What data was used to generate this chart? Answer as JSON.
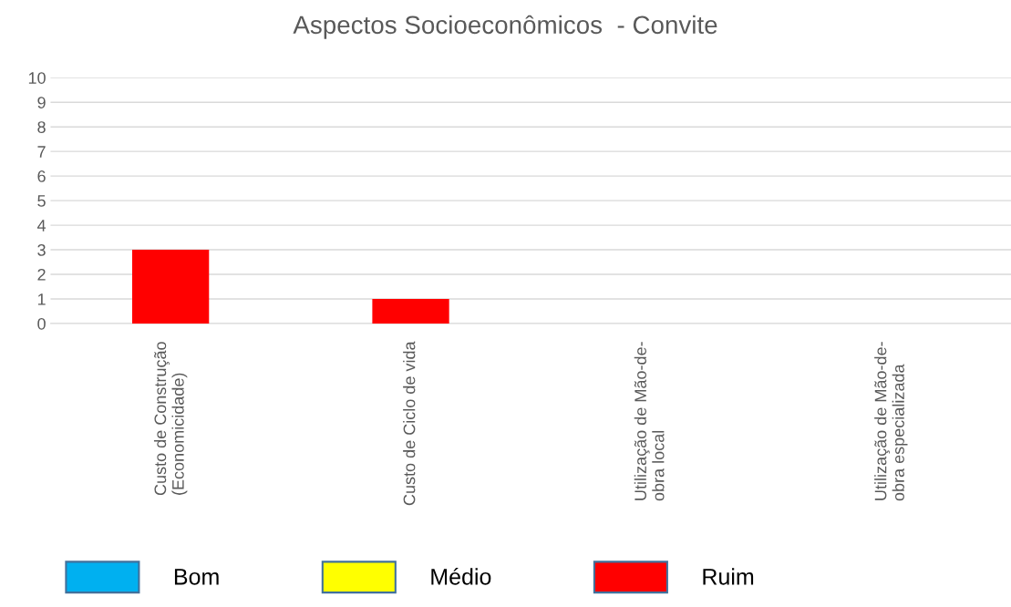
{
  "chart_data": {
    "type": "bar",
    "title": "Aspectos Socioeconômicos  - Convite",
    "categories": [
      "Custo de Construção\n(Economicidade)",
      "Custo de Ciclo de vida",
      "Utilização de Mão-de-\nobra local",
      "Utilização de Mão-de-\nobra especializada"
    ],
    "series": [
      {
        "name": "Bom",
        "color": "#00b0f0",
        "values": [
          0,
          0,
          0,
          0
        ]
      },
      {
        "name": "Médio",
        "color": "#ffff00",
        "values": [
          0,
          0,
          0,
          0
        ]
      },
      {
        "name": "Ruim",
        "color": "#ff0000",
        "values": [
          3,
          1,
          0,
          0
        ]
      }
    ],
    "stacked": true,
    "ylim": [
      0,
      10
    ],
    "yticks": [
      0,
      1,
      2,
      3,
      4,
      5,
      6,
      7,
      8,
      9,
      10
    ],
    "grid": "y",
    "legend": "bottom"
  }
}
